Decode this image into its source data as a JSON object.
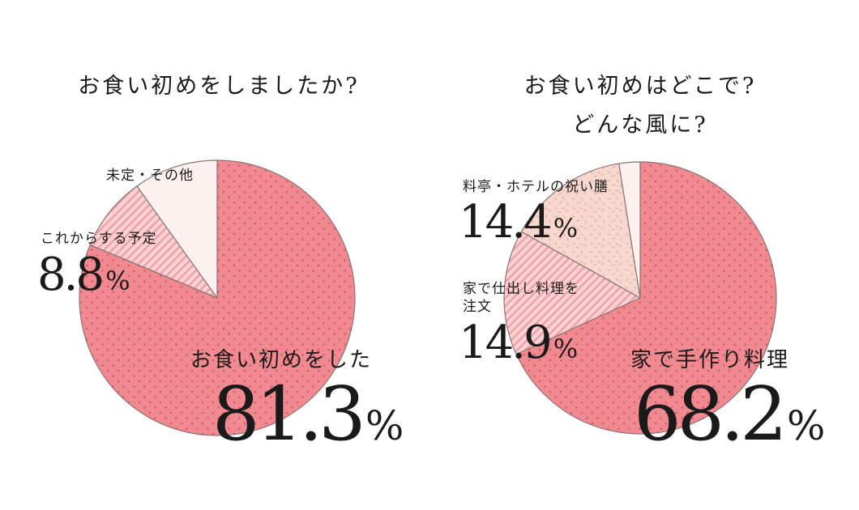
{
  "colors": {
    "main_slice": "#f08a90",
    "main_dots": "#d85c66",
    "light_slice": "#fbd2d3",
    "stripe": "#eca0a4",
    "pale_slice": "#fdf1ef",
    "speckle_slice": "#f6d8cf",
    "speckle": "#e2a898",
    "outline": "#8a7476",
    "text": "#1a1a1a"
  },
  "chart_data": [
    {
      "type": "pie",
      "title": "お食い初めをしましたか?",
      "unit": "%",
      "slices": [
        {
          "label": "お食い初めをした",
          "value": 81.3,
          "value_text": "81.3"
        },
        {
          "label": "これからする予定",
          "value": 8.8,
          "value_text": "8.8"
        },
        {
          "label": "未定・その他",
          "value": 9.9
        }
      ]
    },
    {
      "type": "pie",
      "title": [
        "お食い初めはどこで?",
        "どんな風に?"
      ],
      "unit": "%",
      "slices": [
        {
          "label": "家で手作り料理",
          "value": 68.2,
          "value_text": "68.2"
        },
        {
          "label": [
            "家で仕出し料理を",
            "注文"
          ],
          "value": 14.9,
          "value_text": "14.9"
        },
        {
          "label": "料亭・ホテルの祝い膳",
          "value": 14.4,
          "value_text": "14.4"
        },
        {
          "label": "",
          "value": 2.5
        }
      ]
    }
  ]
}
